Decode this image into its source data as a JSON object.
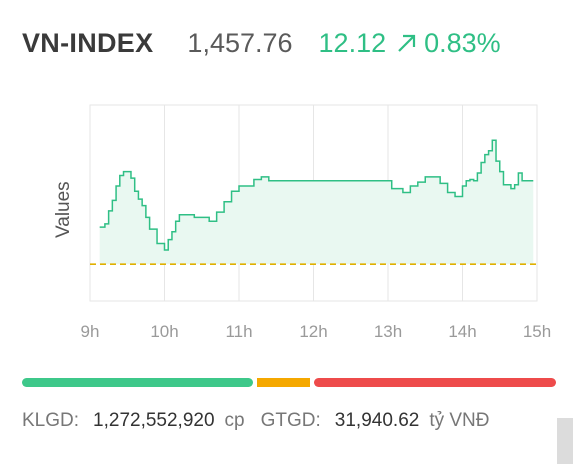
{
  "header": {
    "name": "VN-INDEX",
    "price": "1,457.76",
    "change": "12.12",
    "percent": "0.83%",
    "up_color": "#2fbf85"
  },
  "chart_data": {
    "type": "area",
    "ylabel": "Values",
    "x_ticks": [
      "9h",
      "10h",
      "11h",
      "12h",
      "13h",
      "14h",
      "15h"
    ],
    "reference_value": 1445.64,
    "reference_label": "",
    "ylim": [
      1440,
      1470
    ],
    "series": [
      {
        "x": [
          9.13,
          9.2,
          9.25,
          9.3,
          9.35,
          9.4,
          9.45,
          9.5,
          9.55,
          9.6,
          9.65,
          9.7,
          9.75,
          9.8,
          9.9,
          10.0,
          10.05,
          10.1,
          10.15,
          10.2,
          10.3,
          10.4,
          10.5,
          10.6,
          10.7,
          10.8,
          10.9,
          11.0,
          11.1,
          11.2,
          11.3,
          11.4,
          11.5,
          11.75,
          12.0,
          12.25,
          12.5,
          12.75,
          13.0,
          13.05,
          13.1,
          13.2,
          13.3,
          13.4,
          13.5,
          13.6,
          13.7,
          13.8,
          13.9,
          14.0,
          14.05,
          14.1,
          14.15,
          14.2,
          14.25,
          14.3,
          14.35,
          14.4,
          14.45,
          14.5,
          14.55,
          14.6,
          14.65,
          14.7,
          14.75,
          14.8,
          14.95
        ],
        "y": [
          1451.3,
          1451.8,
          1453.8,
          1455.4,
          1457.6,
          1459.2,
          1459.8,
          1459.8,
          1458.8,
          1456.8,
          1455.6,
          1454.6,
          1452.8,
          1451.0,
          1448.8,
          1447.8,
          1449.4,
          1450.6,
          1452.2,
          1453.2,
          1453.2,
          1452.8,
          1452.8,
          1452.2,
          1453.6,
          1455.2,
          1456.8,
          1457.6,
          1457.6,
          1458.6,
          1459.0,
          1458.4,
          1458.4,
          1458.4,
          1458.4,
          1458.4,
          1458.4,
          1458.4,
          1458.4,
          1457.2,
          1457.2,
          1456.6,
          1457.6,
          1458.2,
          1459.0,
          1459.0,
          1458.0,
          1456.6,
          1456.0,
          1457.6,
          1458.4,
          1458.6,
          1458.4,
          1459.6,
          1461.2,
          1462.4,
          1463.0,
          1464.6,
          1461.4,
          1459.8,
          1457.8,
          1457.8,
          1457.2,
          1457.8,
          1459.6,
          1458.4,
          1458.4
        ],
        "color": "#2fbf85"
      }
    ],
    "grid": true
  },
  "volume_bar": {
    "up_ratio": 0.44,
    "flat_ratio": 0.1,
    "down_ratio": 0.46,
    "up_color": "#3ec88a",
    "flat_color": "#f5a800",
    "down_color": "#ee4b4b"
  },
  "footer": {
    "klgd_label": "KLGD:",
    "klgd_value": "1,272,552,920",
    "klgd_unit": "cp",
    "gtgd_label": "GTGD:",
    "gtgd_value": "31,940.62",
    "gtgd_unit": "tỷ VNĐ"
  }
}
